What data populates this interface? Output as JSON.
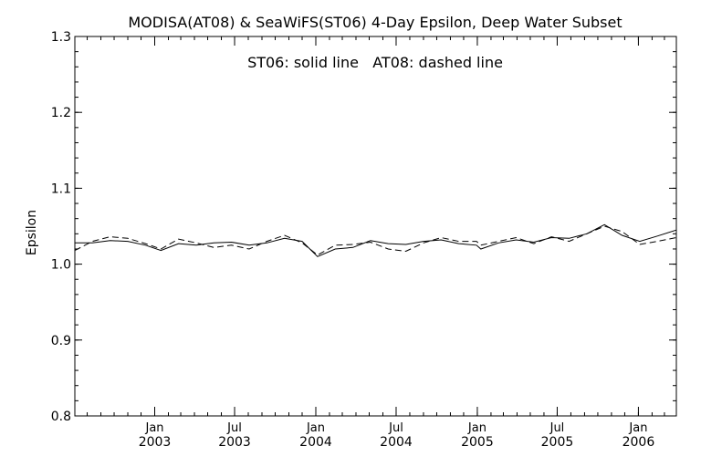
{
  "chart_data": {
    "type": "line",
    "title": "MODISA(AT08) & SeaWiFS(ST06) 4-Day Epsilon, Deep Water Subset",
    "annotation": "ST06: solid line   AT08: dashed line",
    "ylabel": "Epsilon",
    "xlabel": "",
    "ylim": [
      0.8,
      1.3
    ],
    "xlim": [
      "2002-07-04",
      "2006-03-28"
    ],
    "grid": false,
    "y_ticks": [
      {
        "value": 0.8,
        "label": "0.8"
      },
      {
        "value": 0.9,
        "label": "0.9"
      },
      {
        "value": 1.0,
        "label": "1.0"
      },
      {
        "value": 1.1,
        "label": "1.1"
      },
      {
        "value": 1.2,
        "label": "1.2"
      },
      {
        "value": 1.3,
        "label": "1.3"
      }
    ],
    "x_ticks": [
      {
        "date": "2003-01-01",
        "month": "Jan",
        "year": "2003"
      },
      {
        "date": "2003-07-01",
        "month": "Jul",
        "year": "2003"
      },
      {
        "date": "2004-01-01",
        "month": "Jan",
        "year": "2004"
      },
      {
        "date": "2004-07-01",
        "month": "Jul",
        "year": "2004"
      },
      {
        "date": "2005-01-01",
        "month": "Jan",
        "year": "2005"
      },
      {
        "date": "2005-07-01",
        "month": "Jul",
        "year": "2005"
      },
      {
        "date": "2006-01-01",
        "month": "Jan",
        "year": "2006"
      }
    ],
    "series": [
      {
        "name": "ST06",
        "line_style": "solid",
        "color": "#000000",
        "points": [
          [
            "2002-07-04",
            1.028
          ],
          [
            "2002-08-13",
            1.028
          ],
          [
            "2002-09-22",
            1.031
          ],
          [
            "2002-11-01",
            1.03
          ],
          [
            "2002-12-11",
            1.025
          ],
          [
            "2003-01-15",
            1.018
          ],
          [
            "2003-02-24",
            1.027
          ],
          [
            "2003-04-05",
            1.025
          ],
          [
            "2003-05-15",
            1.028
          ],
          [
            "2003-06-24",
            1.029
          ],
          [
            "2003-08-03",
            1.025
          ],
          [
            "2003-09-12",
            1.028
          ],
          [
            "2003-10-22",
            1.034
          ],
          [
            "2003-12-01",
            1.03
          ],
          [
            "2004-01-05",
            1.01
          ],
          [
            "2004-02-14",
            1.02
          ],
          [
            "2004-03-25",
            1.022
          ],
          [
            "2004-05-04",
            1.031
          ],
          [
            "2004-06-13",
            1.027
          ],
          [
            "2004-07-23",
            1.026
          ],
          [
            "2004-09-01",
            1.03
          ],
          [
            "2004-10-11",
            1.032
          ],
          [
            "2004-11-20",
            1.027
          ],
          [
            "2004-12-30",
            1.025
          ],
          [
            "2005-01-09",
            1.02
          ],
          [
            "2005-02-18",
            1.028
          ],
          [
            "2005-03-30",
            1.032
          ],
          [
            "2005-05-09",
            1.029
          ],
          [
            "2005-06-18",
            1.035
          ],
          [
            "2005-07-28",
            1.034
          ],
          [
            "2005-09-06",
            1.04
          ],
          [
            "2005-10-16",
            1.052
          ],
          [
            "2005-11-25",
            1.038
          ],
          [
            "2006-01-04",
            1.03
          ],
          [
            "2006-02-13",
            1.037
          ],
          [
            "2006-03-28",
            1.045
          ]
        ]
      },
      {
        "name": "AT08",
        "line_style": "dashed",
        "color": "#000000",
        "points": [
          [
            "2002-07-04",
            1.018
          ],
          [
            "2002-08-13",
            1.03
          ],
          [
            "2002-09-22",
            1.036
          ],
          [
            "2002-11-01",
            1.034
          ],
          [
            "2002-12-11",
            1.027
          ],
          [
            "2003-01-15",
            1.02
          ],
          [
            "2003-02-24",
            1.033
          ],
          [
            "2003-04-05",
            1.028
          ],
          [
            "2003-05-15",
            1.022
          ],
          [
            "2003-06-24",
            1.025
          ],
          [
            "2003-08-03",
            1.02
          ],
          [
            "2003-09-12",
            1.03
          ],
          [
            "2003-10-22",
            1.038
          ],
          [
            "2003-12-01",
            1.028
          ],
          [
            "2004-01-05",
            1.012
          ],
          [
            "2004-02-14",
            1.025
          ],
          [
            "2004-03-25",
            1.026
          ],
          [
            "2004-05-04",
            1.029
          ],
          [
            "2004-06-13",
            1.02
          ],
          [
            "2004-07-23",
            1.017
          ],
          [
            "2004-09-01",
            1.028
          ],
          [
            "2004-10-11",
            1.035
          ],
          [
            "2004-11-20",
            1.03
          ],
          [
            "2004-12-30",
            1.03
          ],
          [
            "2005-01-09",
            1.025
          ],
          [
            "2005-02-18",
            1.03
          ],
          [
            "2005-03-30",
            1.035
          ],
          [
            "2005-05-09",
            1.027
          ],
          [
            "2005-06-18",
            1.036
          ],
          [
            "2005-07-28",
            1.03
          ],
          [
            "2005-09-06",
            1.04
          ],
          [
            "2005-10-16",
            1.05
          ],
          [
            "2005-11-25",
            1.043
          ],
          [
            "2006-01-04",
            1.026
          ],
          [
            "2006-02-13",
            1.03
          ],
          [
            "2006-03-28",
            1.035
          ]
        ]
      }
    ]
  }
}
